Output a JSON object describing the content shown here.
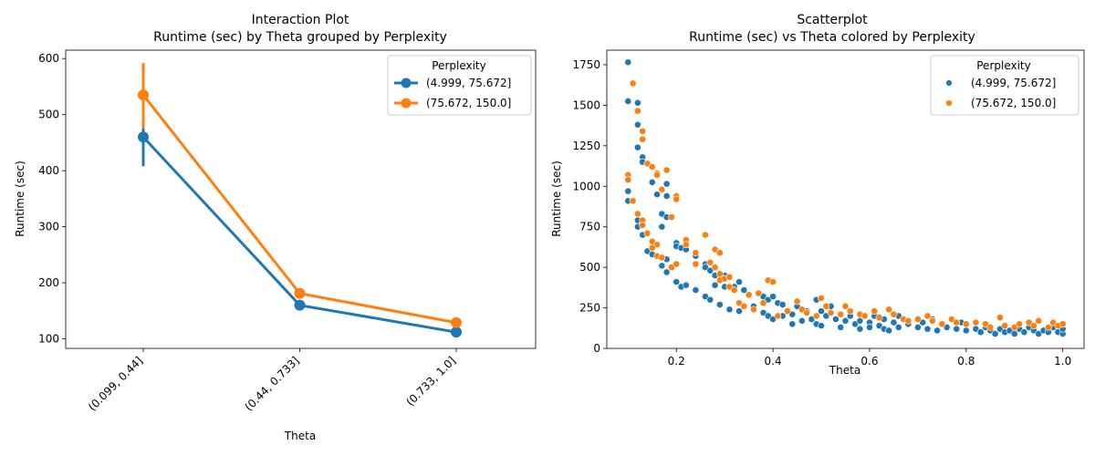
{
  "colors": {
    "series1": "#1f77b4",
    "series2": "#ff7f0e"
  },
  "chart_data": [
    {
      "type": "line",
      "title": "Interaction Plot\nRuntime (sec) by Theta grouped by Perplexity",
      "title_lines": [
        "Interaction Plot",
        "Runtime (sec) by Theta grouped by Perplexity"
      ],
      "xlabel": "Theta",
      "ylabel": "Runtime (sec)",
      "categories": [
        "(0.099, 0.44]",
        "(0.44, 0.733]",
        "(0.733, 1.0]"
      ],
      "ylim": [
        83,
        615
      ],
      "yticks": [
        100,
        200,
        300,
        400,
        500,
        600
      ],
      "legend_title": "Perplexity",
      "legend_position": "top-right",
      "grid": false,
      "series": [
        {
          "name": "(4.999, 75.672]",
          "values": [
            460,
            160,
            112
          ],
          "ci": [
            [
              408,
              477
            ],
            null,
            null
          ]
        },
        {
          "name": "(75.672, 150.0]",
          "values": [
            535,
            181,
            129
          ],
          "ci": [
            [
              475,
              592
            ],
            null,
            null
          ]
        }
      ]
    },
    {
      "type": "scatter",
      "title": "Scatterplot\nRuntime (sec) vs Theta colored by Perplexity",
      "title_lines": [
        "Scatterplot",
        "Runtime (sec) vs Theta colored by Perplexity"
      ],
      "xlabel": "Theta",
      "ylabel": "Runtime (sec)",
      "xlim": [
        0.056,
        1.044
      ],
      "ylim": [
        0,
        1840
      ],
      "xticks": [
        0.2,
        0.4,
        0.6,
        0.8,
        1.0
      ],
      "xtick_labels": [
        "0.2",
        "0.4",
        "0.6",
        "0.8",
        "1.0"
      ],
      "yticks": [
        0,
        250,
        500,
        750,
        1000,
        1250,
        1500,
        1750
      ],
      "legend_title": "Perplexity",
      "legend_position": "top-right",
      "grid": false,
      "series": [
        {
          "name": "(4.999, 75.672]",
          "points": [
            [
              0.1,
              1765
            ],
            [
              0.1,
              1525
            ],
            [
              0.12,
              1515
            ],
            [
              0.12,
              1380
            ],
            [
              0.12,
              1240
            ],
            [
              0.13,
              1180
            ],
            [
              0.13,
              1150
            ],
            [
              0.15,
              1025
            ],
            [
              0.16,
              950
            ],
            [
              0.18,
              1015
            ],
            [
              0.18,
              940
            ],
            [
              0.1,
              970
            ],
            [
              0.1,
              910
            ],
            [
              0.12,
              790
            ],
            [
              0.12,
              750
            ],
            [
              0.13,
              700
            ],
            [
              0.14,
              600
            ],
            [
              0.15,
              580
            ],
            [
              0.17,
              830
            ],
            [
              0.17,
              750
            ],
            [
              0.18,
              810
            ],
            [
              0.17,
              510
            ],
            [
              0.18,
              470
            ],
            [
              0.18,
              550
            ],
            [
              0.2,
              650
            ],
            [
              0.2,
              630
            ],
            [
              0.21,
              620
            ],
            [
              0.22,
              610
            ],
            [
              0.2,
              410
            ],
            [
              0.21,
              380
            ],
            [
              0.22,
              390
            ],
            [
              0.24,
              570
            ],
            [
              0.24,
              360
            ],
            [
              0.26,
              520
            ],
            [
              0.26,
              500
            ],
            [
              0.26,
              320
            ],
            [
              0.27,
              480
            ],
            [
              0.27,
              300
            ],
            [
              0.28,
              450
            ],
            [
              0.28,
              390
            ],
            [
              0.29,
              270
            ],
            [
              0.3,
              380
            ],
            [
              0.3,
              450
            ],
            [
              0.31,
              240
            ],
            [
              0.32,
              380
            ],
            [
              0.33,
              410
            ],
            [
              0.33,
              230
            ],
            [
              0.34,
              360
            ],
            [
              0.35,
              330
            ],
            [
              0.36,
              260
            ],
            [
              0.38,
              320
            ],
            [
              0.38,
              220
            ],
            [
              0.39,
              300
            ],
            [
              0.39,
              200
            ],
            [
              0.4,
              320
            ],
            [
              0.4,
              180
            ],
            [
              0.41,
              280
            ],
            [
              0.42,
              270
            ],
            [
              0.42,
              200
            ],
            [
              0.44,
              210
            ],
            [
              0.44,
              150
            ],
            [
              0.45,
              260
            ],
            [
              0.46,
              170
            ],
            [
              0.47,
              230
            ],
            [
              0.48,
              180
            ],
            [
              0.49,
              300
            ],
            [
              0.49,
              150
            ],
            [
              0.5,
              230
            ],
            [
              0.5,
              140
            ],
            [
              0.51,
              200
            ],
            [
              0.52,
              260
            ],
            [
              0.53,
              180
            ],
            [
              0.54,
              130
            ],
            [
              0.55,
              170
            ],
            [
              0.56,
              200
            ],
            [
              0.57,
              150
            ],
            [
              0.58,
              170
            ],
            [
              0.58,
              120
            ],
            [
              0.6,
              160
            ],
            [
              0.6,
              130
            ],
            [
              0.61,
              200
            ],
            [
              0.62,
              140
            ],
            [
              0.63,
              180
            ],
            [
              0.63,
              120
            ],
            [
              0.64,
              110
            ],
            [
              0.65,
              160
            ],
            [
              0.66,
              200
            ],
            [
              0.66,
              130
            ],
            [
              0.68,
              150
            ],
            [
              0.7,
              130
            ],
            [
              0.71,
              160
            ],
            [
              0.72,
              120
            ],
            [
              0.73,
              180
            ],
            [
              0.74,
              110
            ],
            [
              0.75,
              150
            ],
            [
              0.76,
              130
            ],
            [
              0.78,
              120
            ],
            [
              0.79,
              160
            ],
            [
              0.8,
              110
            ],
            [
              0.82,
              120
            ],
            [
              0.83,
              100
            ],
            [
              0.84,
              130
            ],
            [
              0.85,
              110
            ],
            [
              0.86,
              90
            ],
            [
              0.87,
              120
            ],
            [
              0.88,
              100
            ],
            [
              0.89,
              110
            ],
            [
              0.9,
              90
            ],
            [
              0.91,
              120
            ],
            [
              0.92,
              100
            ],
            [
              0.93,
              130
            ],
            [
              0.94,
              110
            ],
            [
              0.95,
              90
            ],
            [
              0.96,
              110
            ],
            [
              0.97,
              100
            ],
            [
              0.98,
              130
            ],
            [
              0.99,
              100
            ],
            [
              1.0,
              90
            ],
            [
              1.0,
              120
            ]
          ]
        },
        {
          "name": "(75.672, 150.0]",
          "points": [
            [
              0.11,
              1635
            ],
            [
              0.12,
              1465
            ],
            [
              0.13,
              1340
            ],
            [
              0.13,
              1290
            ],
            [
              0.1,
              1070
            ],
            [
              0.1,
              1040
            ],
            [
              0.11,
              910
            ],
            [
              0.12,
              830
            ],
            [
              0.13,
              790
            ],
            [
              0.13,
              760
            ],
            [
              0.14,
              1140
            ],
            [
              0.15,
              1120
            ],
            [
              0.16,
              1080
            ],
            [
              0.16,
              1070
            ],
            [
              0.18,
              1100
            ],
            [
              0.17,
              980
            ],
            [
              0.2,
              940
            ],
            [
              0.2,
              920
            ],
            [
              0.19,
              810
            ],
            [
              0.14,
              710
            ],
            [
              0.15,
              660
            ],
            [
              0.16,
              640
            ],
            [
              0.15,
              620
            ],
            [
              0.16,
              570
            ],
            [
              0.17,
              560
            ],
            [
              0.19,
              500
            ],
            [
              0.2,
              520
            ],
            [
              0.22,
              670
            ],
            [
              0.22,
              640
            ],
            [
              0.24,
              590
            ],
            [
              0.24,
              520
            ],
            [
              0.26,
              700
            ],
            [
              0.27,
              530
            ],
            [
              0.28,
              610
            ],
            [
              0.29,
              590
            ],
            [
              0.28,
              500
            ],
            [
              0.29,
              460
            ],
            [
              0.29,
              420
            ],
            [
              0.3,
              430
            ],
            [
              0.31,
              440
            ],
            [
              0.31,
              380
            ],
            [
              0.32,
              360
            ],
            [
              0.33,
              280
            ],
            [
              0.34,
              260
            ],
            [
              0.35,
              330
            ],
            [
              0.36,
              240
            ],
            [
              0.37,
              340
            ],
            [
              0.38,
              280
            ],
            [
              0.39,
              420
            ],
            [
              0.4,
              410
            ],
            [
              0.41,
              200
            ],
            [
              0.43,
              230
            ],
            [
              0.45,
              290
            ],
            [
              0.46,
              240
            ],
            [
              0.47,
              220
            ],
            [
              0.49,
              200
            ],
            [
              0.5,
              310
            ],
            [
              0.51,
              260
            ],
            [
              0.52,
              220
            ],
            [
              0.54,
              210
            ],
            [
              0.55,
              260
            ],
            [
              0.56,
              230
            ],
            [
              0.58,
              210
            ],
            [
              0.59,
              200
            ],
            [
              0.61,
              230
            ],
            [
              0.62,
              190
            ],
            [
              0.64,
              240
            ],
            [
              0.65,
              210
            ],
            [
              0.67,
              180
            ],
            [
              0.68,
              170
            ],
            [
              0.7,
              180
            ],
            [
              0.72,
              200
            ],
            [
              0.73,
              170
            ],
            [
              0.75,
              150
            ],
            [
              0.77,
              180
            ],
            [
              0.78,
              160
            ],
            [
              0.8,
              150
            ],
            [
              0.82,
              160
            ],
            [
              0.84,
              150
            ],
            [
              0.85,
              130
            ],
            [
              0.87,
              190
            ],
            [
              0.88,
              140
            ],
            [
              0.9,
              130
            ],
            [
              0.91,
              150
            ],
            [
              0.93,
              160
            ],
            [
              0.94,
              140
            ],
            [
              0.95,
              170
            ],
            [
              0.97,
              130
            ],
            [
              0.98,
              160
            ],
            [
              0.99,
              140
            ],
            [
              1.0,
              150
            ]
          ]
        }
      ]
    }
  ]
}
